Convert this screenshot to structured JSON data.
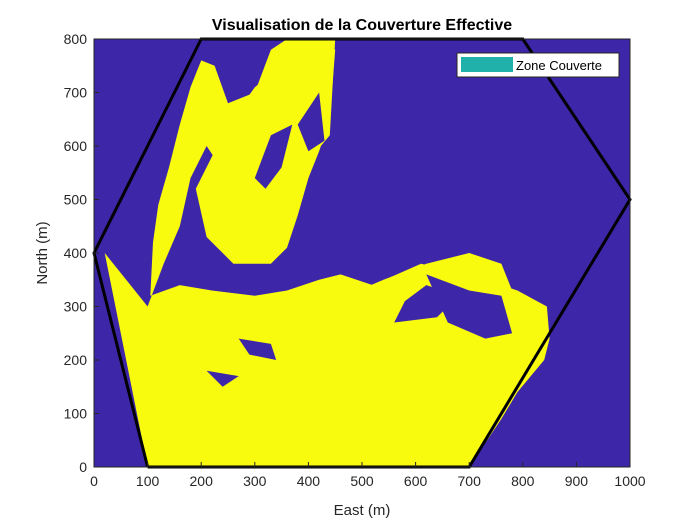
{
  "chart_data": {
    "type": "heatmap",
    "title": "Visualisation de la Couverture Effective",
    "xlabel": "East (m)",
    "ylabel": "North (m)",
    "xlim": [
      0,
      1000
    ],
    "ylim": [
      0,
      800
    ],
    "xticks": [
      0,
      100,
      200,
      300,
      400,
      500,
      600,
      700,
      800,
      900,
      1000
    ],
    "yticks": [
      0,
      100,
      200,
      300,
      400,
      500,
      600,
      700,
      800
    ],
    "grid": false,
    "legend": {
      "placement": "top-right",
      "entries": [
        {
          "label": "Zone Couverte",
          "color": "#20B2AA"
        }
      ]
    },
    "colors": {
      "background": "#3E26A8",
      "covered": "#F9FB0E",
      "boundary": "#000000"
    },
    "boundary_polygon": [
      [
        100,
        0
      ],
      [
        700,
        0
      ],
      [
        1000,
        500
      ],
      [
        800,
        800
      ],
      [
        200,
        800
      ],
      [
        0,
        400
      ],
      [
        100,
        0
      ]
    ],
    "covered_regions": [
      [
        [
          100,
          0
        ],
        [
          700,
          0
        ],
        [
          760,
          90
        ],
        [
          790,
          140
        ],
        [
          840,
          200
        ],
        [
          850,
          240
        ],
        [
          845,
          300
        ],
        [
          790,
          330
        ],
        [
          700,
          360
        ],
        [
          610,
          380
        ],
        [
          520,
          340
        ],
        [
          460,
          360
        ],
        [
          420,
          350
        ],
        [
          360,
          330
        ],
        [
          300,
          320
        ],
        [
          220,
          330
        ],
        [
          160,
          340
        ],
        [
          105,
          320
        ],
        [
          110,
          420
        ],
        [
          120,
          490
        ],
        [
          140,
          560
        ],
        [
          160,
          640
        ],
        [
          180,
          710
        ],
        [
          200,
          760
        ],
        [
          225,
          750
        ],
        [
          250,
          680
        ],
        [
          300,
          700
        ],
        [
          330,
          780
        ],
        [
          360,
          800
        ],
        [
          450,
          800
        ],
        [
          440,
          620
        ],
        [
          390,
          560
        ],
        [
          370,
          490
        ],
        [
          330,
          430
        ],
        [
          290,
          460
        ],
        [
          250,
          540
        ],
        [
          210,
          600
        ],
        [
          180,
          540
        ],
        [
          160,
          450
        ],
        [
          130,
          380
        ],
        [
          100,
          300
        ],
        [
          20,
          400
        ],
        [
          100,
          0
        ]
      ],
      [
        [
          190,
          520
        ],
        [
          250,
          640
        ],
        [
          300,
          710
        ],
        [
          360,
          760
        ],
        [
          410,
          790
        ],
        [
          450,
          780
        ],
        [
          440,
          650
        ],
        [
          420,
          590
        ],
        [
          400,
          540
        ],
        [
          380,
          470
        ],
        [
          360,
          410
        ],
        [
          330,
          380
        ],
        [
          260,
          380
        ],
        [
          210,
          430
        ],
        [
          190,
          520
        ]
      ],
      [
        [
          120,
          180
        ],
        [
          200,
          230
        ],
        [
          300,
          260
        ],
        [
          380,
          290
        ],
        [
          470,
          320
        ],
        [
          540,
          350
        ],
        [
          620,
          380
        ],
        [
          700,
          400
        ],
        [
          760,
          380
        ],
        [
          780,
          330
        ],
        [
          760,
          290
        ],
        [
          700,
          300
        ],
        [
          620,
          330
        ],
        [
          560,
          300
        ],
        [
          500,
          260
        ],
        [
          440,
          230
        ],
        [
          380,
          220
        ],
        [
          300,
          200
        ],
        [
          230,
          190
        ],
        [
          170,
          180
        ],
        [
          120,
          180
        ]
      ],
      [
        [
          230,
          140
        ],
        [
          330,
          160
        ],
        [
          420,
          160
        ],
        [
          520,
          150
        ],
        [
          620,
          140
        ],
        [
          700,
          130
        ],
        [
          760,
          140
        ],
        [
          740,
          60
        ],
        [
          700,
          10
        ],
        [
          600,
          10
        ],
        [
          480,
          10
        ],
        [
          360,
          20
        ],
        [
          260,
          20
        ],
        [
          230,
          140
        ]
      ]
    ],
    "uncovered_holes": [
      [
        [
          300,
          540
        ],
        [
          330,
          620
        ],
        [
          370,
          640
        ],
        [
          350,
          560
        ],
        [
          320,
          520
        ],
        [
          300,
          540
        ]
      ],
      [
        [
          470,
          430
        ],
        [
          540,
          400
        ],
        [
          560,
          470
        ],
        [
          520,
          520
        ],
        [
          480,
          500
        ],
        [
          470,
          430
        ]
      ],
      [
        [
          560,
          270
        ],
        [
          640,
          280
        ],
        [
          680,
          320
        ],
        [
          620,
          340
        ],
        [
          580,
          310
        ],
        [
          560,
          270
        ]
      ],
      [
        [
          620,
          360
        ],
        [
          700,
          330
        ],
        [
          760,
          320
        ],
        [
          780,
          250
        ],
        [
          730,
          240
        ],
        [
          660,
          270
        ],
        [
          620,
          360
        ]
      ],
      [
        [
          270,
          240
        ],
        [
          330,
          230
        ],
        [
          340,
          200
        ],
        [
          290,
          210
        ],
        [
          270,
          240
        ]
      ],
      [
        [
          380,
          640
        ],
        [
          420,
          700
        ],
        [
          430,
          610
        ],
        [
          400,
          590
        ],
        [
          380,
          640
        ]
      ],
      [
        [
          210,
          180
        ],
        [
          270,
          170
        ],
        [
          240,
          150
        ],
        [
          210,
          180
        ]
      ]
    ]
  }
}
